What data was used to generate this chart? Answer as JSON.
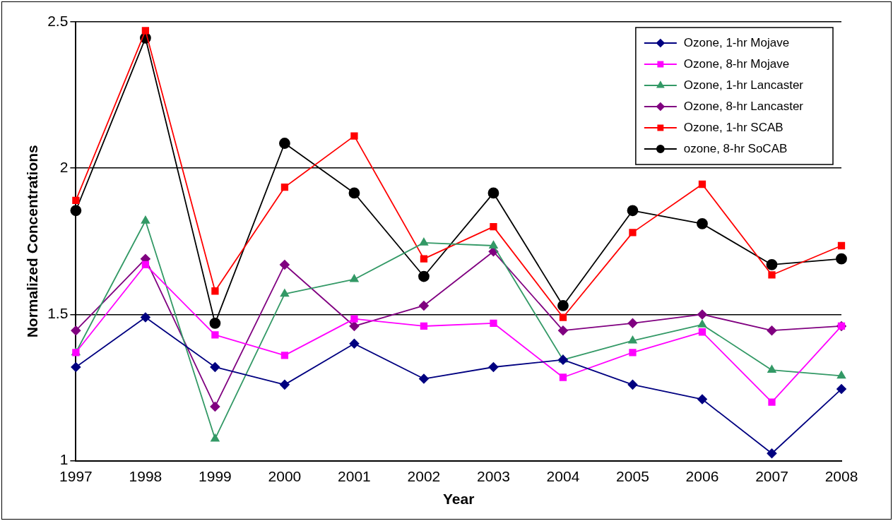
{
  "chart_data": {
    "type": "line",
    "xlabel": "Year",
    "ylabel": "Normalized Concentrations",
    "categories": [
      "1997",
      "1998",
      "1999",
      "2000",
      "2001",
      "2002",
      "2003",
      "2004",
      "2005",
      "2006",
      "2007",
      "2008"
    ],
    "ylim": [
      1,
      2.5
    ],
    "yticks": [
      1,
      1.5,
      2,
      2.5
    ],
    "grid": "y",
    "legend": "top right",
    "line_style": "solid",
    "series": [
      {
        "name": "Ozone, 1-hr Mojave",
        "color": "#000080",
        "marker": "diamond",
        "values": [
          1.32,
          1.49,
          1.32,
          1.26,
          1.4,
          1.28,
          1.32,
          1.345,
          1.26,
          1.21,
          1.025,
          1.245
        ]
      },
      {
        "name": "Ozone, 8-hr Mojave",
        "color": "#ff00ff",
        "marker": "square",
        "values": [
          1.37,
          1.67,
          1.43,
          1.36,
          1.485,
          1.46,
          1.47,
          1.285,
          1.37,
          1.44,
          1.2,
          1.46
        ]
      },
      {
        "name": "Ozone, 1-hr Lancaster",
        "color": "#339966",
        "marker": "triangle",
        "values": [
          1.37,
          1.82,
          1.075,
          1.57,
          1.62,
          1.745,
          1.735,
          1.345,
          1.41,
          1.465,
          1.31,
          1.29
        ]
      },
      {
        "name": "Ozone, 8-hr Lancaster",
        "color": "#800080",
        "marker": "diamond",
        "values": [
          1.445,
          1.69,
          1.185,
          1.67,
          1.46,
          1.53,
          1.715,
          1.445,
          1.47,
          1.5,
          1.445,
          1.46
        ]
      },
      {
        "name": "Ozone, 1-hr SCAB",
        "color": "#ff0000",
        "marker": "square",
        "values": [
          1.89,
          2.47,
          1.58,
          1.935,
          2.11,
          1.69,
          1.8,
          1.49,
          1.78,
          1.945,
          1.635,
          1.735
        ]
      },
      {
        "name": "ozone, 8-hr SoCAB",
        "color": "#000000",
        "marker": "circle",
        "values": [
          1.855,
          2.445,
          1.47,
          2.085,
          1.915,
          1.63,
          1.915,
          1.53,
          1.855,
          1.81,
          1.67,
          1.69
        ]
      }
    ]
  }
}
